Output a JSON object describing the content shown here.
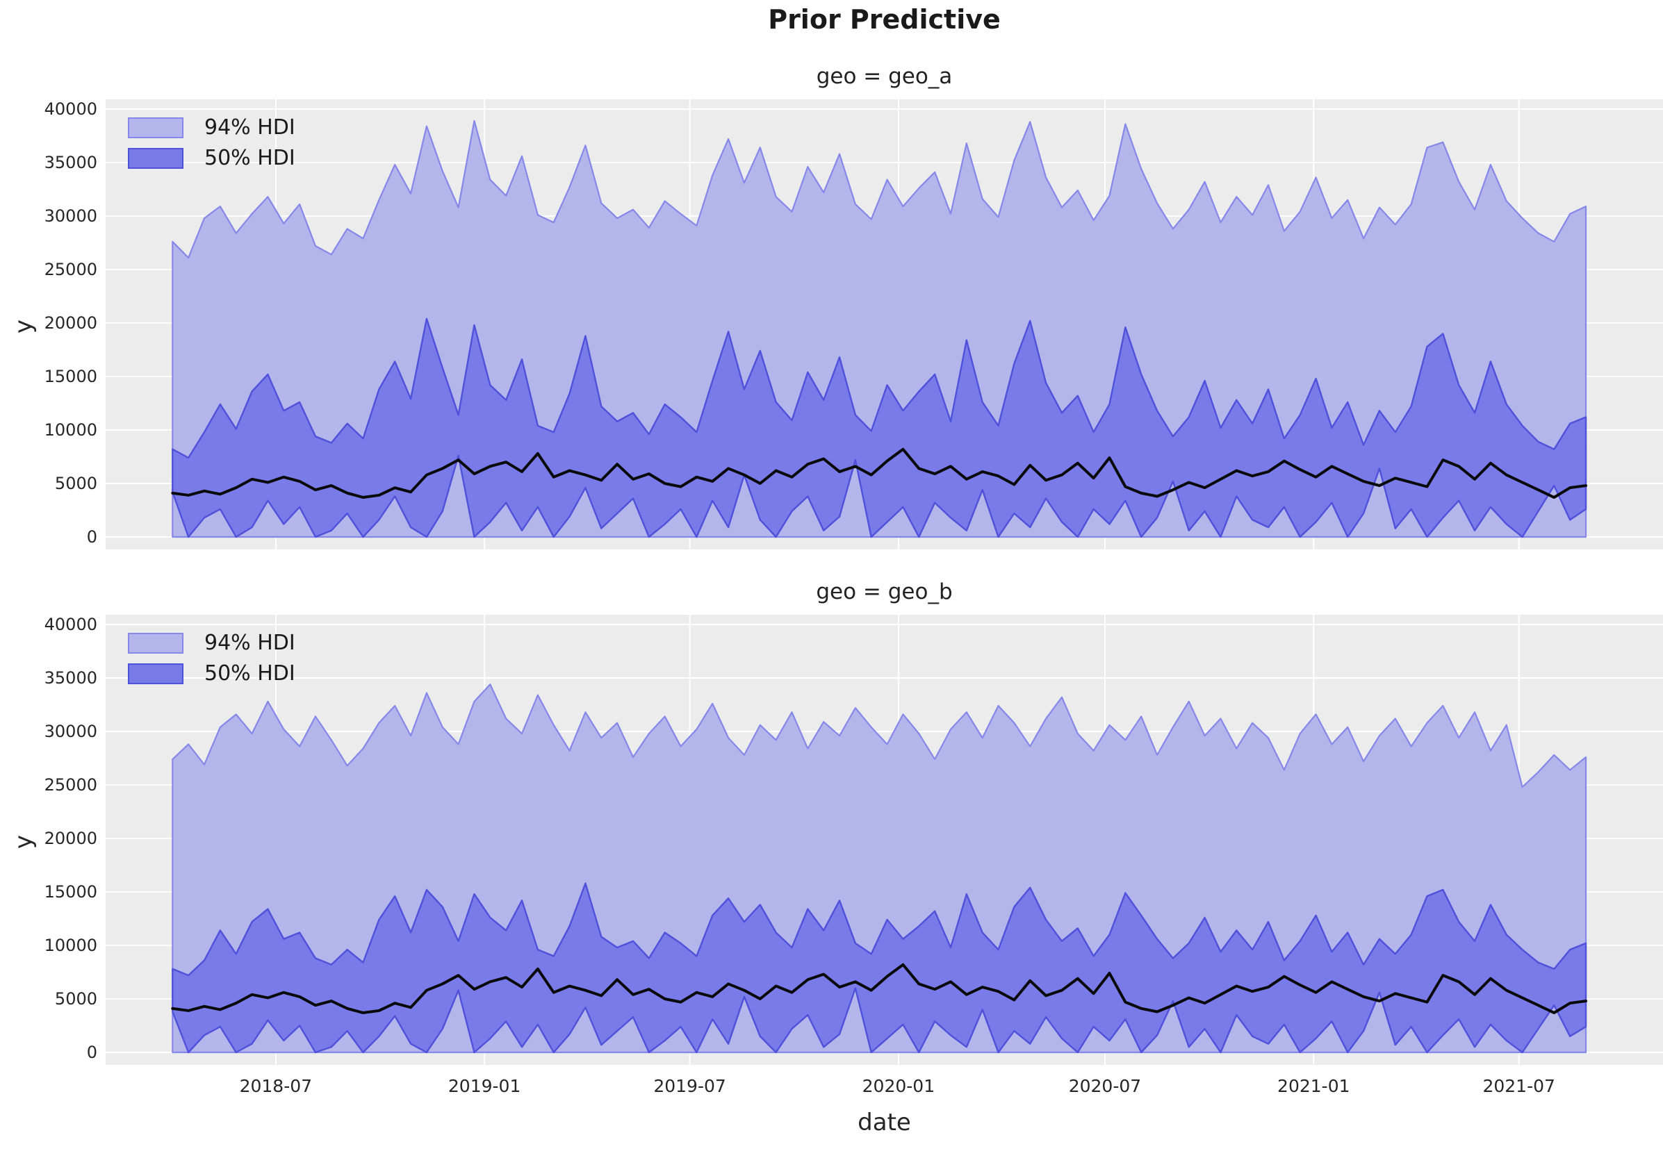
{
  "figure": {
    "title": "Prior Predictive"
  },
  "axis": {
    "x_label": "date",
    "y_label": "y",
    "x_domain": [
      "2018-02-01",
      "2021-11-05"
    ],
    "y_domain": [
      0,
      40000
    ],
    "grid": "on",
    "y_ticks": [
      {
        "value": 0,
        "label": "0"
      },
      {
        "value": 5000,
        "label": "5000"
      },
      {
        "value": 10000,
        "label": "10000"
      },
      {
        "value": 15000,
        "label": "15000"
      },
      {
        "value": 20000,
        "label": "20000"
      },
      {
        "value": 25000,
        "label": "25000"
      },
      {
        "value": 30000,
        "label": "30000"
      },
      {
        "value": 35000,
        "label": "35000"
      },
      {
        "value": 40000,
        "label": "40000"
      }
    ],
    "x_ticks": [
      {
        "date": "2018-07-01",
        "label": "2018-07"
      },
      {
        "date": "2019-01-01",
        "label": "2019-01"
      },
      {
        "date": "2019-07-01",
        "label": "2019-07"
      },
      {
        "date": "2020-01-01",
        "label": "2020-01"
      },
      {
        "date": "2020-07-01",
        "label": "2020-07"
      },
      {
        "date": "2021-01-01",
        "label": "2021-01"
      },
      {
        "date": "2021-07-01",
        "label": "2021-07"
      }
    ]
  },
  "legend": {
    "items": [
      {
        "label": "94% HDI",
        "fill": "#b4b5eb",
        "edge": "#8587e9"
      },
      {
        "label": "50% HDI",
        "fill": "#797be8",
        "edge": "#4f51da"
      }
    ],
    "position": "upper left",
    "frame": "off"
  },
  "colors": {
    "mean_line": "#0a0a0a",
    "plot_bg": "#ececec",
    "grid": "#ffffff",
    "figure_bg": "#ffffff"
  },
  "chart_data": [
    {
      "type": "area",
      "geo": "geo_a",
      "panel_title": "geo = geo_a",
      "x_start": "2018-04-01",
      "x_step_days": 14,
      "hdi94_lower": 0,
      "hdi94_upper": [
        27600,
        26100,
        29800,
        30900,
        28400,
        30200,
        31800,
        29300,
        31100,
        27200,
        26400,
        28800,
        27900,
        31500,
        34800,
        32100,
        38400,
        34200,
        30800,
        38900,
        33400,
        31900,
        35600,
        30100,
        29400,
        32700,
        36600,
        31200,
        29800,
        30600,
        28900,
        31400,
        30200,
        29100,
        33800,
        37200,
        33100,
        36400,
        31800,
        30400,
        34600,
        32200,
        35800,
        31100,
        29700,
        33400,
        30900,
        32600,
        34100,
        30200,
        36800,
        31600,
        29900,
        35200,
        38800,
        33600,
        30800,
        32400,
        29600,
        31900,
        38600,
        34400,
        31200,
        28800,
        30600,
        33200,
        29400,
        31800,
        30100,
        32900,
        28600,
        30400,
        33600,
        29800,
        31500,
        27900,
        30800,
        29200,
        31100,
        36400,
        36900,
        33200,
        30600,
        34800,
        31400,
        29800,
        28400,
        27600,
        30200,
        30900
      ],
      "hdi50_upper": [
        8200,
        7400,
        9800,
        12400,
        10100,
        13600,
        15200,
        11800,
        12600,
        9400,
        8800,
        10600,
        9200,
        13800,
        16400,
        12900,
        20400,
        15800,
        11400,
        19800,
        14200,
        12800,
        16600,
        10400,
        9800,
        13400,
        18800,
        12200,
        10800,
        11600,
        9600,
        12400,
        11200,
        9800,
        14600,
        19200,
        13800,
        17400,
        12600,
        10900,
        15400,
        12800,
        16800,
        11400,
        9900,
        14200,
        11800,
        13600,
        15200,
        10800,
        18400,
        12600,
        10400,
        16200,
        20200,
        14400,
        11600,
        13200,
        9800,
        12400,
        19600,
        15200,
        11800,
        9400,
        11200,
        14600,
        10200,
        12800,
        10600,
        13800,
        9200,
        11400,
        14800,
        10200,
        12600,
        8600,
        11800,
        9800,
        12200,
        17800,
        19000,
        14200,
        11600,
        16400,
        12400,
        10400,
        8900,
        8200,
        10600,
        11200
      ],
      "hdi50_lower": [
        4200,
        0,
        1800,
        2600,
        0,
        900,
        3400,
        1200,
        2800,
        0,
        600,
        2200,
        0,
        1600,
        3800,
        900,
        0,
        2400,
        7600,
        0,
        1400,
        3200,
        600,
        2800,
        0,
        1900,
        4600,
        800,
        2200,
        3600,
        0,
        1200,
        2600,
        0,
        3400,
        900,
        5800,
        1600,
        0,
        2400,
        3800,
        600,
        1900,
        7200,
        0,
        1400,
        2800,
        0,
        3200,
        1800,
        600,
        4400,
        0,
        2200,
        900,
        3600,
        1400,
        0,
        2600,
        1200,
        3400,
        0,
        1800,
        5200,
        600,
        2400,
        0,
        3800,
        1600,
        900,
        2800,
        0,
        1400,
        3200,
        0,
        2200,
        6400,
        800,
        2600,
        0,
        1800,
        3400,
        600,
        2800,
        1200,
        0,
        2400,
        4800,
        1600,
        2600
      ],
      "mean": [
        4100,
        3900,
        4300,
        4000,
        4600,
        5400,
        5100,
        5600,
        5200,
        4400,
        4800,
        4100,
        3700,
        3900,
        4600,
        4200,
        5800,
        6400,
        7200,
        5900,
        6600,
        7000,
        6100,
        7800,
        5600,
        6200,
        5800,
        5300,
        6800,
        5400,
        5900,
        5000,
        4700,
        5600,
        5200,
        6400,
        5800,
        5000,
        6200,
        5600,
        6800,
        7300,
        6100,
        6600,
        5800,
        7100,
        8200,
        6400,
        5900,
        6600,
        5400,
        6100,
        5700,
        4900,
        6700,
        5300,
        5800,
        6900,
        5500,
        7400,
        4700,
        4100,
        3800,
        4400,
        5100,
        4600,
        5400,
        6200,
        5700,
        6100,
        7100,
        6300,
        5600,
        6600,
        5900,
        5200,
        4800,
        5500,
        5100,
        4700,
        7200,
        6600,
        5400,
        6900,
        5800,
        5100,
        4400,
        3700,
        4600,
        4800
      ]
    },
    {
      "type": "area",
      "geo": "geo_b",
      "panel_title": "geo = geo_b",
      "x_start": "2018-04-01",
      "x_step_days": 14,
      "hdi94_lower": 0,
      "hdi94_upper": [
        27400,
        28800,
        26900,
        30400,
        31600,
        29800,
        32800,
        30200,
        28600,
        31400,
        29200,
        26800,
        28400,
        30800,
        32400,
        29600,
        33600,
        30400,
        28800,
        32800,
        34400,
        31200,
        29800,
        33400,
        30600,
        28200,
        31800,
        29400,
        30800,
        27600,
        29800,
        31400,
        28600,
        30200,
        32600,
        29400,
        27800,
        30600,
        29200,
        31800,
        28400,
        30900,
        29600,
        32200,
        30400,
        28800,
        31600,
        29800,
        27400,
        30200,
        31800,
        29400,
        32400,
        30800,
        28600,
        31200,
        33200,
        29800,
        28200,
        30600,
        29200,
        31400,
        27800,
        30400,
        32800,
        29600,
        31200,
        28400,
        30800,
        29400,
        26400,
        29800,
        31600,
        28800,
        30400,
        27200,
        29600,
        31200,
        28600,
        30800,
        32400,
        29400,
        31800,
        28200,
        30600,
        24800,
        26200,
        27800,
        26400,
        27600
      ],
      "hdi50_upper": [
        7800,
        7200,
        8600,
        11400,
        9200,
        12200,
        13400,
        10600,
        11200,
        8800,
        8200,
        9600,
        8400,
        12400,
        14600,
        11200,
        15200,
        13600,
        10400,
        14800,
        12600,
        11400,
        14200,
        9600,
        9000,
        11800,
        15800,
        10800,
        9800,
        10400,
        8800,
        11200,
        10200,
        9000,
        12800,
        14400,
        12200,
        13800,
        11200,
        9800,
        13400,
        11400,
        14200,
        10200,
        9200,
        12400,
        10600,
        11800,
        13200,
        9800,
        14800,
        11200,
        9600,
        13600,
        15400,
        12400,
        10400,
        11600,
        9000,
        11000,
        14900,
        12800,
        10600,
        8800,
        10200,
        12600,
        9400,
        11400,
        9600,
        12200,
        8600,
        10400,
        12800,
        9400,
        11200,
        8200,
        10600,
        9200,
        11000,
        14600,
        15200,
        12200,
        10400,
        13800,
        11000,
        9600,
        8400,
        7800,
        9600,
        10200
      ],
      "hdi50_lower": [
        3800,
        0,
        1600,
        2400,
        0,
        800,
        3000,
        1100,
        2500,
        0,
        500,
        2000,
        0,
        1500,
        3400,
        800,
        0,
        2200,
        5800,
        0,
        1300,
        2900,
        500,
        2600,
        0,
        1700,
        4200,
        700,
        2000,
        3300,
        0,
        1100,
        2400,
        0,
        3100,
        800,
        5200,
        1500,
        0,
        2200,
        3500,
        500,
        1700,
        6000,
        0,
        1300,
        2600,
        0,
        2900,
        1600,
        500,
        4000,
        0,
        2000,
        800,
        3300,
        1300,
        0,
        2400,
        1100,
        3100,
        0,
        1600,
        4800,
        500,
        2200,
        0,
        3500,
        1500,
        800,
        2600,
        0,
        1300,
        2900,
        0,
        2000,
        5600,
        700,
        2400,
        0,
        1600,
        3100,
        500,
        2600,
        1100,
        0,
        2200,
        4400,
        1500,
        2400
      ],
      "mean": [
        4100,
        3900,
        4300,
        4000,
        4600,
        5400,
        5100,
        5600,
        5200,
        4400,
        4800,
        4100,
        3700,
        3900,
        4600,
        4200,
        5800,
        6400,
        7200,
        5900,
        6600,
        7000,
        6100,
        7800,
        5600,
        6200,
        5800,
        5300,
        6800,
        5400,
        5900,
        5000,
        4700,
        5600,
        5200,
        6400,
        5800,
        5000,
        6200,
        5600,
        6800,
        7300,
        6100,
        6600,
        5800,
        7100,
        8200,
        6400,
        5900,
        6600,
        5400,
        6100,
        5700,
        4900,
        6700,
        5300,
        5800,
        6900,
        5500,
        7400,
        4700,
        4100,
        3800,
        4400,
        5100,
        4600,
        5400,
        6200,
        5700,
        6100,
        7100,
        6300,
        5600,
        6600,
        5900,
        5200,
        4800,
        5500,
        5100,
        4700,
        7200,
        6600,
        5400,
        6900,
        5800,
        5100,
        4400,
        3700,
        4600,
        4800
      ]
    }
  ]
}
